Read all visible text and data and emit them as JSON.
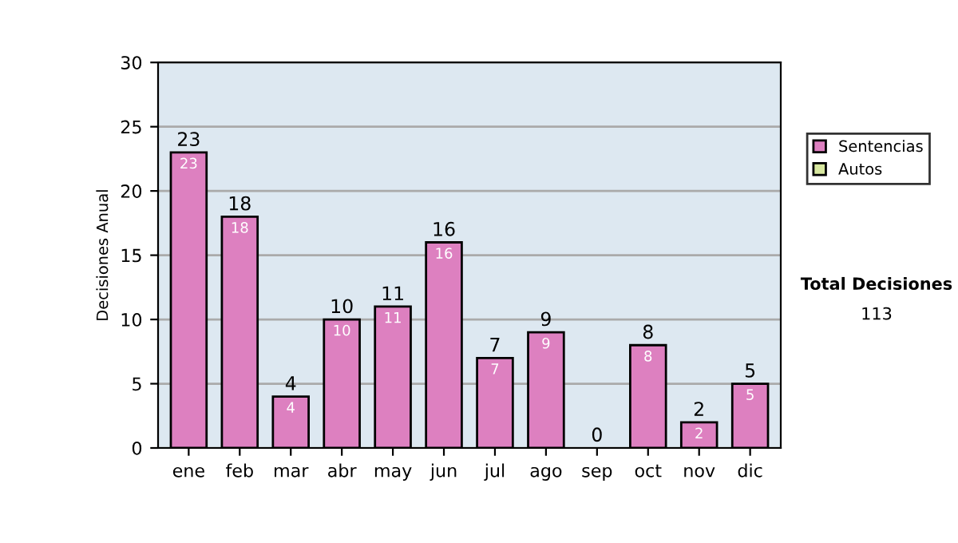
{
  "chart_data": {
    "type": "bar",
    "ylabel": "Decisiones Anual",
    "categories": [
      "ene",
      "feb",
      "mar",
      "abr",
      "may",
      "jun",
      "jul",
      "ago",
      "sep",
      "oct",
      "nov",
      "dic"
    ],
    "stacked": true,
    "series": [
      {
        "name": "Sentencias",
        "color": "#dd80c0",
        "values": [
          23,
          18,
          4,
          10,
          11,
          16,
          7,
          9,
          0,
          8,
          2,
          5
        ],
        "value_labels": [
          "23",
          "18",
          "4",
          "10",
          "11",
          "16",
          "7",
          "9",
          null,
          "8",
          "2",
          "5"
        ]
      },
      {
        "name": "Autos",
        "color": "#d8e8a0",
        "values": [
          0,
          0,
          0,
          0,
          0,
          0,
          0,
          0,
          0,
          0,
          0,
          0
        ]
      }
    ],
    "totals": [
      "23",
      "18",
      "4",
      "10",
      "11",
      "16",
      "7",
      "9",
      "0",
      "8",
      "2",
      "5"
    ],
    "ylim": [
      0,
      30
    ],
    "yticks": [
      0,
      5,
      10,
      15,
      20,
      25,
      30
    ],
    "grid": "y",
    "legend": "right",
    "annotations": [
      "Total Decisiones",
      "113"
    ]
  }
}
